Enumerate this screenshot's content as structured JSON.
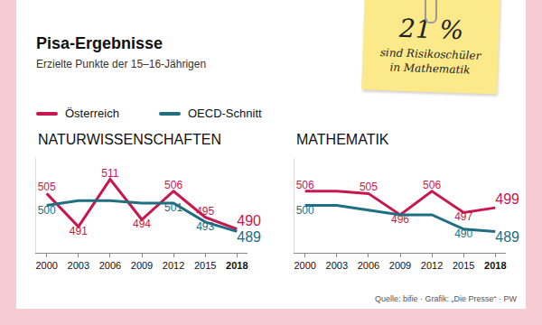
{
  "title": "Pisa-Ergebnisse",
  "subtitle": "Erzielte Punkte der 15–16-Jährigen",
  "note": {
    "headline": "21 %",
    "text": "sind Risikoschüler in Mathematik"
  },
  "source": "Quelle: bifie · Grafik: „Die Presse“ · PW",
  "chart_data": [
    {
      "type": "line",
      "title": "NATURWISSENSCHAFTEN",
      "categories": [
        "2000",
        "2003",
        "2006",
        "2009",
        "2012",
        "2015",
        "2018"
      ],
      "series": [
        {
          "name": "Österreich",
          "color": "#c8174f",
          "values": [
            505,
            491,
            511,
            494,
            506,
            495,
            490
          ],
          "value_labels": [
            "505",
            "491",
            "511",
            "494",
            "506",
            "495",
            "490"
          ]
        },
        {
          "name": "OECD-Schnitt",
          "color": "#1f6e82",
          "values": [
            500,
            502,
            502,
            501,
            501,
            493,
            489
          ],
          "value_labels": [
            "500",
            null,
            null,
            null,
            "501",
            "493",
            "489"
          ]
        }
      ],
      "ylim": [
        480,
        520
      ],
      "grid": false,
      "tick_labels": "x",
      "data_labels": true,
      "legend": "top left"
    },
    {
      "type": "line",
      "title": "MATHEMATIK",
      "categories": [
        "2000",
        "2003",
        "2006",
        "2009",
        "2012",
        "2015",
        "2018"
      ],
      "series": [
        {
          "name": "Österreich",
          "color": "#c8174f",
          "values": [
            506,
            506,
            505,
            496,
            506,
            497,
            499
          ],
          "value_labels": [
            "506",
            null,
            "505",
            "496",
            "506",
            "497",
            "499"
          ]
        },
        {
          "name": "OECD-Schnitt",
          "color": "#1f6e82",
          "values": [
            500,
            500,
            498,
            496,
            496,
            490,
            489
          ],
          "value_labels": [
            "500",
            null,
            null,
            null,
            null,
            "490",
            "489"
          ]
        }
      ],
      "ylim": [
        480,
        520
      ],
      "grid": false,
      "tick_labels": "x",
      "data_labels": true
    }
  ]
}
